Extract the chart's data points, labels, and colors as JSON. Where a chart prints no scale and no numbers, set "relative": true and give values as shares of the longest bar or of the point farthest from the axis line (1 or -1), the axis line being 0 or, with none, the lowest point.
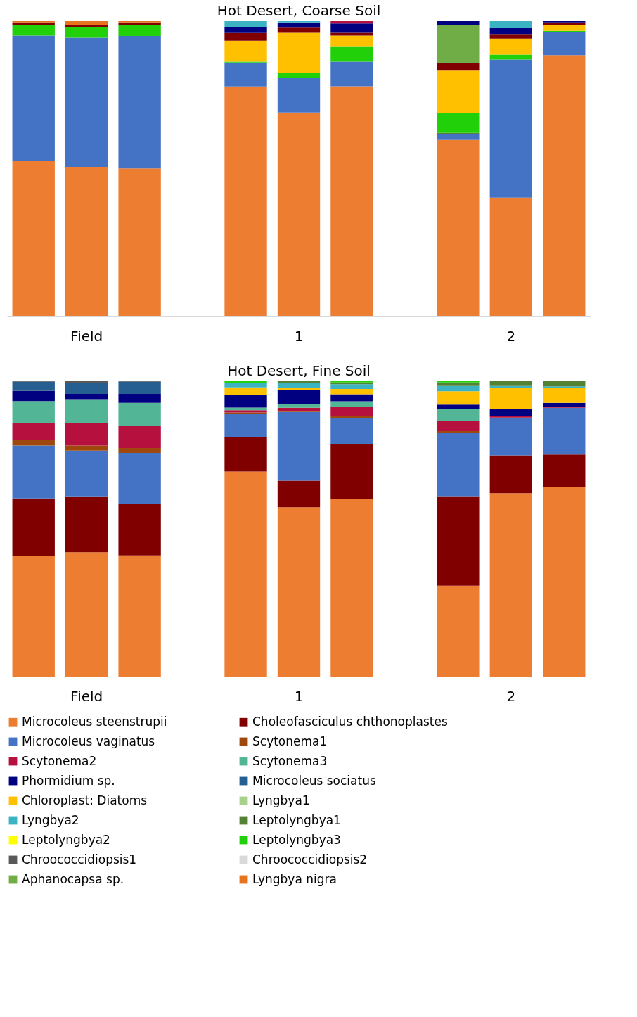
{
  "chart_data": [
    {
      "type": "bar",
      "title": "Hot Desert, Coarse Soil",
      "stacked": true,
      "relative": true,
      "legend": "bottom",
      "categories": [
        null,
        "Field",
        null,
        null,
        null,
        "1",
        null,
        null,
        null,
        "2",
        null
      ],
      "series": [
        {
          "name": "Microcoleus steenstrupii",
          "color": "#ed7d31",
          "values": [
            0.526,
            0.505,
            0.502,
            null,
            0.779,
            0.691,
            0.78,
            null,
            0.598,
            0.403,
            0.885
          ]
        },
        {
          "name": "Microcoleus vaginatus",
          "color": "#4472c4",
          "values": [
            0.425,
            0.439,
            0.448,
            null,
            0.081,
            0.116,
            0.083,
            null,
            0.02,
            0.467,
            0.077
          ]
        },
        {
          "name": "Leptolyngbya1",
          "color": "#548235",
          "values": [
            null,
            null,
            null,
            null,
            null,
            null,
            null,
            null,
            0.004,
            null,
            null
          ]
        },
        {
          "name": "Leptolyngbya3",
          "color": "#22d00a",
          "values": [
            0.035,
            0.035,
            0.036,
            null,
            0.003,
            0.017,
            0.05,
            null,
            0.066,
            0.017,
            0.005
          ]
        },
        {
          "name": "Chloroplast: Diatoms",
          "color": "#ffc000",
          "values": [
            null,
            null,
            null,
            null,
            0.071,
            0.137,
            0.038,
            null,
            0.145,
            0.054,
            0.02
          ]
        },
        {
          "name": "Choleofasciculus chthonoplastes",
          "color": "#800000",
          "values": [
            0.01,
            0.009,
            0.01,
            null,
            0.026,
            0.017,
            0.01,
            null,
            0.024,
            0.013,
            0.009
          ]
        },
        {
          "name": "Aphanocapsa sp.",
          "color": "#70ad47",
          "values": [
            null,
            null,
            null,
            null,
            null,
            null,
            null,
            null,
            0.129,
            null,
            null
          ]
        },
        {
          "name": "Phormidium sp.",
          "color": "#000080",
          "values": [
            null,
            null,
            null,
            null,
            0.02,
            0.018,
            0.031,
            null,
            0.014,
            0.022,
            0.004
          ]
        },
        {
          "name": "Lyngbya2",
          "color": "#3bb3c3",
          "values": [
            null,
            null,
            null,
            null,
            0.02,
            0.004,
            null,
            null,
            null,
            0.024,
            null
          ]
        },
        {
          "name": "Scytonema2",
          "color": "#b5103e",
          "values": [
            null,
            null,
            null,
            null,
            null,
            null,
            0.008,
            null,
            null,
            null,
            null
          ]
        },
        {
          "name": "Lyngbya nigra",
          "color": "#e8731f",
          "values": [
            0.004,
            0.012,
            0.004,
            null,
            null,
            null,
            null,
            null,
            null,
            null,
            null
          ]
        }
      ]
    },
    {
      "type": "bar",
      "title": "Hot Desert, Fine Soil",
      "stacked": true,
      "relative": true,
      "legend": "bottom",
      "categories": [
        null,
        "Field",
        null,
        null,
        null,
        "1",
        null,
        null,
        null,
        "2",
        null
      ],
      "series": [
        {
          "name": "Microcoleus steenstrupii",
          "color": "#ed7d31",
          "values": [
            0.407,
            0.421,
            0.41,
            null,
            0.694,
            0.573,
            0.601,
            null,
            0.308,
            0.621,
            0.641
          ]
        },
        {
          "name": "Choleofasciculus chthonoplastes",
          "color": "#800000",
          "values": [
            0.196,
            0.189,
            0.175,
            null,
            0.118,
            0.09,
            0.187,
            null,
            0.303,
            0.128,
            0.111
          ]
        },
        {
          "name": "Microcoleus vaginatus",
          "color": "#4472c4",
          "values": [
            0.179,
            0.155,
            0.172,
            null,
            0.077,
            0.233,
            0.088,
            null,
            0.214,
            0.128,
            0.158
          ]
        },
        {
          "name": "Scytonema1",
          "color": "#9e480e",
          "values": [
            0.018,
            0.017,
            0.017,
            null,
            0.005,
            0.004,
            0.006,
            null,
            0.006,
            null,
            null
          ]
        },
        {
          "name": "Scytonema2",
          "color": "#b5103e",
          "values": [
            0.057,
            0.076,
            0.076,
            null,
            0.008,
            0.01,
            0.031,
            null,
            0.033,
            0.006,
            0.004
          ]
        },
        {
          "name": "Scytonema3",
          "color": "#52b596",
          "values": [
            0.076,
            0.079,
            0.077,
            null,
            0.009,
            0.012,
            0.019,
            null,
            0.043,
            null,
            null
          ]
        },
        {
          "name": "Phormidium sp.",
          "color": "#000080",
          "values": [
            0.034,
            0.02,
            0.03,
            null,
            0.042,
            0.047,
            0.024,
            null,
            0.014,
            0.022,
            0.013
          ]
        },
        {
          "name": "Microcoleus sociatus",
          "color": "#255e91",
          "values": [
            0.031,
            0.038,
            0.041,
            null,
            null,
            null,
            null,
            null,
            null,
            null,
            null
          ]
        },
        {
          "name": "Chloroplast: Diatoms",
          "color": "#ffc000",
          "values": [
            null,
            null,
            null,
            null,
            0.026,
            0.008,
            0.018,
            null,
            0.045,
            0.071,
            0.05
          ]
        },
        {
          "name": "Lyngbya1",
          "color": "#a9d18e",
          "values": [
            null,
            null,
            null,
            null,
            null,
            null,
            null,
            null,
            null,
            null,
            null
          ]
        },
        {
          "name": "Lyngbya2",
          "color": "#3bb3c3",
          "values": [
            null,
            null,
            null,
            null,
            0.016,
            0.018,
            0.016,
            null,
            0.018,
            0.008,
            0.006
          ]
        },
        {
          "name": "Leptolyngbya1",
          "color": "#548235",
          "values": [
            null,
            null,
            null,
            null,
            null,
            0.005,
            0.006,
            null,
            0.012,
            0.016,
            0.017
          ]
        },
        {
          "name": "Leptolyngbya2",
          "color": "#ffff00",
          "values": [
            null,
            null,
            null,
            null,
            null,
            null,
            null,
            null,
            null,
            null,
            null
          ]
        },
        {
          "name": "Leptolyngbya3",
          "color": "#22d00a",
          "values": [
            null,
            null,
            null,
            null,
            0.005,
            null,
            0.004,
            null,
            0.004,
            null,
            null
          ]
        },
        {
          "name": "Chroococcidiopsis1",
          "color": "#595959",
          "values": [
            0.002,
            0.005,
            0.002,
            null,
            null,
            null,
            null,
            null,
            null,
            null,
            null
          ]
        },
        {
          "name": "Chroococcidiopsis2",
          "color": "#d9d9d9",
          "values": [
            null,
            null,
            null,
            null,
            null,
            null,
            null,
            null,
            null,
            null,
            null
          ]
        },
        {
          "name": "Aphanocapsa sp.",
          "color": "#70ad47",
          "values": [
            null,
            null,
            null,
            null,
            null,
            null,
            null,
            null,
            null,
            null,
            null
          ]
        },
        {
          "name": "Lyngbya nigra",
          "color": "#e8731f",
          "values": [
            null,
            null,
            null,
            null,
            null,
            null,
            null,
            null,
            null,
            null,
            null
          ]
        }
      ]
    }
  ]
}
